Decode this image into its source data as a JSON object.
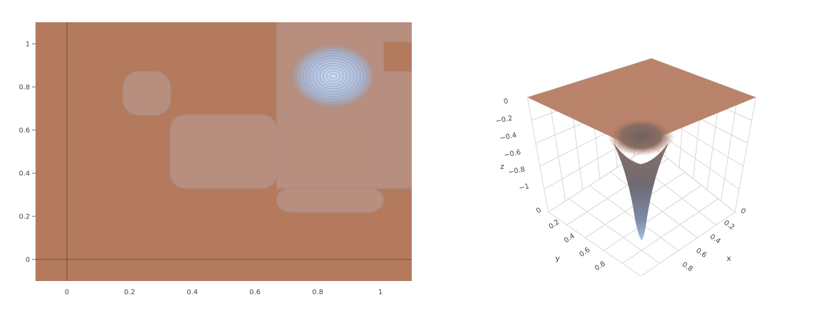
{
  "colors": {
    "background": "#ffffff",
    "surface_base": "#b37a5e",
    "plateau_fill": "#b88e7e",
    "plateau_edge": "#ad8d83",
    "peak_light": "#c7dbf2",
    "peak_mid": "#a9b6d4",
    "contour_line": "#8f9bbb",
    "axis_zero": "#7a4a36",
    "tick_text": "#444444",
    "grid_3d": "#d6d6d6"
  },
  "chart_data": [
    {
      "type": "contour",
      "title": "",
      "xlabel": "",
      "ylabel": "",
      "xlim": [
        -0.1,
        1.1
      ],
      "ylim": [
        -0.1,
        1.1
      ],
      "x_ticks": [
        "0",
        "0.2",
        "0.4",
        "0.6",
        "0.8",
        "1"
      ],
      "y_ticks": [
        "0",
        "0.2",
        "0.4",
        "0.6",
        "0.8",
        "1"
      ],
      "peak": {
        "x": 0.85,
        "y": 0.85
      },
      "grid": false
    },
    {
      "type": "surface",
      "title": "",
      "axis_titles": {
        "x": "x",
        "y": "y",
        "z": "z"
      },
      "x_ticks": [
        "0",
        "0.2",
        "0.4",
        "0.6",
        "0.8"
      ],
      "y_ticks": [
        "0",
        "0.2",
        "0.4",
        "0.6",
        "0.8"
      ],
      "z_ticks": [
        "0",
        "−0.2",
        "−0.4",
        "−0.6",
        "−0.8",
        "−1"
      ],
      "zlim": [
        -1,
        0
      ],
      "minimum": {
        "x": 0.5,
        "y": 0.5,
        "z": -1
      }
    }
  ]
}
